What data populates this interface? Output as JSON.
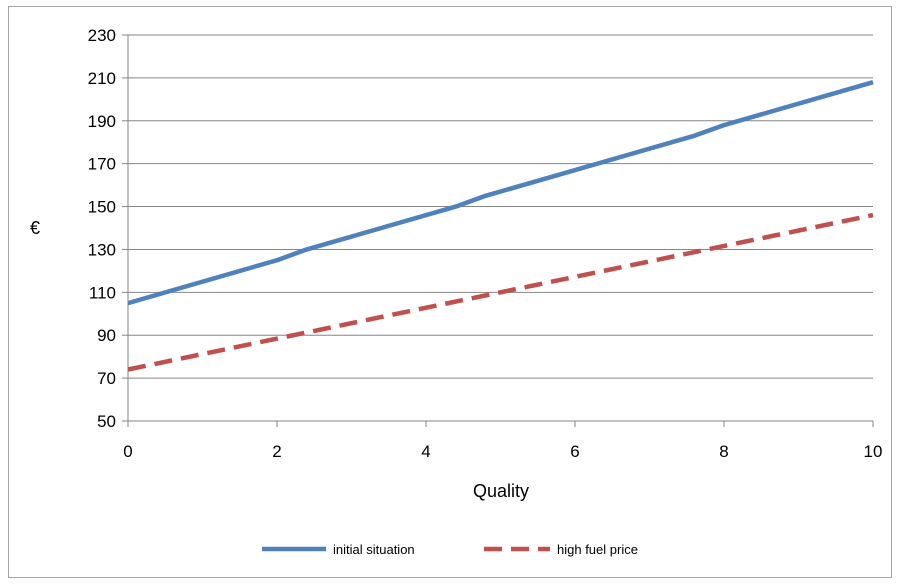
{
  "chart_data": {
    "type": "line",
    "title": "",
    "xlabel": "Quality",
    "ylabel": "€",
    "xlim": [
      0,
      10
    ],
    "ylim": [
      50,
      230
    ],
    "x_ticks": [
      0,
      2,
      4,
      6,
      8,
      10
    ],
    "y_ticks": [
      50,
      70,
      90,
      110,
      130,
      150,
      170,
      190,
      210,
      230
    ],
    "grid": "horizontal",
    "legend_position": "bottom",
    "series": [
      {
        "name": "initial situation",
        "color": "#4f81bd",
        "style": "solid",
        "x": [
          0,
          2,
          2.4,
          4.4,
          4.8,
          7.6,
          8,
          10
        ],
        "values": [
          105,
          125,
          130,
          150,
          155,
          183,
          188,
          208
        ]
      },
      {
        "name": "high fuel price",
        "color": "#c0504d",
        "style": "dashed",
        "x": [
          0,
          10
        ],
        "values": [
          74,
          146
        ]
      }
    ]
  }
}
